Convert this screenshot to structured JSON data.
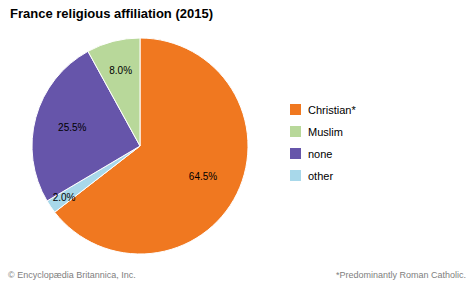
{
  "chart_data": {
    "type": "pie",
    "title": "France religious affiliation (2015)",
    "values": [
      64.5,
      2.0,
      25.5,
      8.0
    ],
    "value_labels": [
      "64.5%",
      "2.0%",
      "25.5%",
      "8.0%"
    ],
    "colors": [
      "#F07820",
      "#A8D8EA",
      "#6655AA",
      "#B8D89A"
    ],
    "data_labels": true,
    "legend": "right",
    "legend_entries": [
      {
        "name": "Christian*",
        "color": "#F07820"
      },
      {
        "name": "Muslim",
        "color": "#B8D89A"
      },
      {
        "name": "none",
        "color": "#6655AA"
      },
      {
        "name": "other",
        "color": "#A8D8EA"
      }
    ],
    "annotations": [
      "© Encyclopædia Britannica, Inc.",
      "*Predominantly Roman Catholic."
    ]
  }
}
